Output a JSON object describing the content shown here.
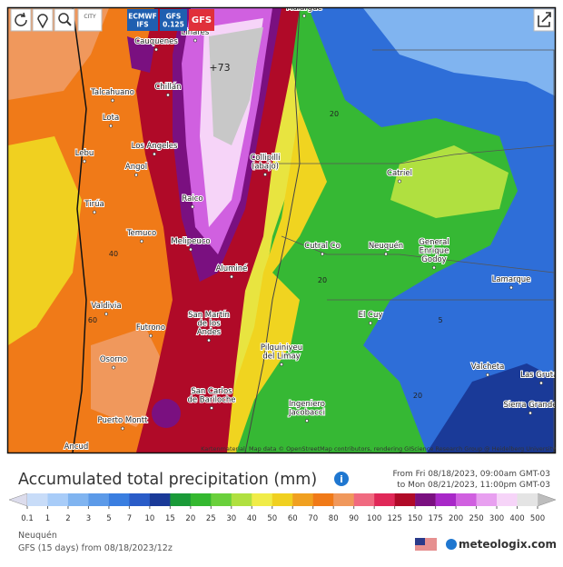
{
  "toolbar": {
    "city_button": "CITY",
    "models": [
      {
        "lines": [
          "ECMWF",
          "IFS"
        ],
        "color": "#1f5fb0"
      },
      {
        "lines": [
          "GFS",
          "0.125"
        ],
        "color": "#1f5fb0"
      },
      {
        "lines": [
          "GFS"
        ],
        "color": "#e0303a"
      }
    ]
  },
  "map": {
    "places": [
      {
        "lines": [
          "Malargüe"
        ]
      },
      {
        "lines": [
          "Linares"
        ]
      },
      {
        "lines": [
          "Cauquenes"
        ]
      },
      {
        "lines": [
          "Talcahuano"
        ]
      },
      {
        "lines": [
          "Chillán"
        ]
      },
      {
        "lines": [
          "Lota"
        ]
      },
      {
        "lines": [
          "Los Angeles"
        ]
      },
      {
        "lines": [
          "Lebu"
        ]
      },
      {
        "lines": [
          "Angol"
        ]
      },
      {
        "lines": [
          "Collipilli",
          "(abajo)"
        ]
      },
      {
        "lines": [
          "Catriel"
        ]
      },
      {
        "lines": [
          "Raico"
        ]
      },
      {
        "lines": [
          "Tirúa"
        ]
      },
      {
        "lines": [
          "Temuco"
        ]
      },
      {
        "lines": [
          "Melipeuco"
        ]
      },
      {
        "lines": [
          "Cutral Co"
        ]
      },
      {
        "lines": [
          "Neuquén"
        ]
      },
      {
        "lines": [
          "General",
          "Enrique",
          "Godoy"
        ]
      },
      {
        "lines": [
          "Aluminé"
        ]
      },
      {
        "lines": [
          "Lamarque"
        ]
      },
      {
        "lines": [
          "Valdivia"
        ]
      },
      {
        "lines": [
          "San Martín",
          "de los",
          "Andes"
        ]
      },
      {
        "lines": [
          "El Cuy"
        ]
      },
      {
        "lines": [
          "Futrono"
        ]
      },
      {
        "lines": [
          "Pilquiniyeu",
          "del Limay"
        ]
      },
      {
        "lines": [
          "Osorno"
        ]
      },
      {
        "lines": [
          "Valcheta"
        ]
      },
      {
        "lines": [
          "Las Grutas"
        ]
      },
      {
        "lines": [
          "San Carlos",
          "de Bariloche"
        ]
      },
      {
        "lines": [
          "Ingeniero",
          "Jacobacci"
        ]
      },
      {
        "lines": [
          "Sierra Grande"
        ]
      },
      {
        "lines": [
          "Puerto Montt"
        ]
      },
      {
        "lines": [
          "Ancud"
        ]
      }
    ],
    "contour_labels": [
      "+73",
      "20",
      "40",
      "20",
      "60",
      "5",
      "20"
    ],
    "attribution": "Kartenmaterial: Map data © OpenStreetMap contributors, rendering GIScience Research Group @ Heidelberg University"
  },
  "legend": {
    "title": "Accumulated total precipitation (mm)",
    "from": "From Fri 08/18/2023, 09:00am GMT-03",
    "to": "to Mon 08/21/2023, 11:00pm GMT-03",
    "ticks": [
      "0.1",
      "1",
      "2",
      "3",
      "5",
      "7",
      "10",
      "15",
      "20",
      "25",
      "30",
      "40",
      "50",
      "60",
      "70",
      "80",
      "90",
      "100",
      "125",
      "150",
      "175",
      "200",
      "250",
      "300",
      "400",
      "500"
    ],
    "under_color": "#dcdcec",
    "over_color": "#bdbdbd",
    "colors": [
      "#c8dcf8",
      "#a8ccf8",
      "#80b4f0",
      "#5c9ae8",
      "#3a7ee0",
      "#2a5cc8",
      "#1a3a98",
      "#1a9a38",
      "#34b830",
      "#6ad03c",
      "#b0e040",
      "#f0ec48",
      "#f0d020",
      "#f0a020",
      "#f07a18",
      "#f0985c",
      "#f06a80",
      "#e02858",
      "#b00a28",
      "#7a1080",
      "#a828c8",
      "#d060e0",
      "#e8a0f0",
      "#f6d4f8",
      "#e4e4e4"
    ]
  },
  "footer": {
    "region": "Neuquén",
    "run": "GFS (15 days) from 08/18/2023/12z",
    "brand": "meteologix.com"
  }
}
